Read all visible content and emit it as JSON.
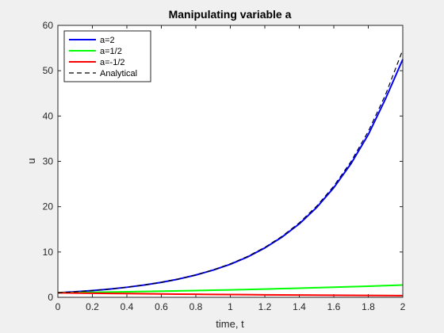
{
  "chart_data": {
    "type": "line",
    "title": "Manipulating variable a",
    "xlabel": "time, t",
    "ylabel": "u",
    "xlim": [
      0,
      2
    ],
    "ylim": [
      0,
      60
    ],
    "xticks": [
      0,
      0.2,
      0.4,
      0.6,
      0.8,
      1,
      1.2,
      1.4,
      1.6,
      1.8,
      2
    ],
    "xtick_labels": [
      "0",
      "0.2",
      "0.4",
      "0.6",
      "0.8",
      "1",
      "1.2",
      "1.4",
      "1.6",
      "1.8",
      "2"
    ],
    "yticks": [
      0,
      10,
      20,
      30,
      40,
      50,
      60
    ],
    "ytick_labels": [
      "0",
      "10",
      "20",
      "30",
      "40",
      "50",
      "60"
    ],
    "grid": false,
    "legend_position": "top-left",
    "x": [
      0,
      0.1,
      0.2,
      0.3,
      0.4,
      0.5,
      0.6,
      0.7,
      0.8,
      0.9,
      1.0,
      1.1,
      1.2,
      1.3,
      1.4,
      1.5,
      1.6,
      1.7,
      1.8,
      1.9,
      2.0
    ],
    "series": [
      {
        "name": "a=2",
        "color": "#0000ff",
        "style": "solid",
        "values": [
          1.0,
          1.22,
          1.49,
          1.82,
          2.22,
          2.71,
          3.3,
          4.03,
          4.92,
          6.0,
          7.3,
          8.9,
          10.9,
          13.3,
          16.2,
          19.8,
          24.2,
          29.5,
          35.9,
          43.8,
          52.5
        ]
      },
      {
        "name": "a=1/2",
        "color": "#00ff00",
        "style": "solid",
        "values": [
          1.0,
          1.05,
          1.1,
          1.16,
          1.22,
          1.28,
          1.35,
          1.42,
          1.49,
          1.57,
          1.65,
          1.73,
          1.82,
          1.92,
          2.01,
          2.12,
          2.23,
          2.34,
          2.46,
          2.59,
          2.72
        ]
      },
      {
        "name": "a=-1/2",
        "color": "#ff0000",
        "style": "solid",
        "values": [
          1.0,
          0.95,
          0.9,
          0.86,
          0.82,
          0.78,
          0.74,
          0.7,
          0.67,
          0.64,
          0.61,
          0.58,
          0.55,
          0.52,
          0.5,
          0.47,
          0.45,
          0.43,
          0.41,
          0.39,
          0.37
        ]
      },
      {
        "name": "Analytical",
        "color": "#000000",
        "style": "dashed",
        "values": [
          1.0,
          1.22,
          1.49,
          1.82,
          2.23,
          2.72,
          3.32,
          4.06,
          4.95,
          6.05,
          7.39,
          9.03,
          11.02,
          13.46,
          16.44,
          20.09,
          24.53,
          29.96,
          36.6,
          44.7,
          54.6
        ]
      }
    ]
  }
}
